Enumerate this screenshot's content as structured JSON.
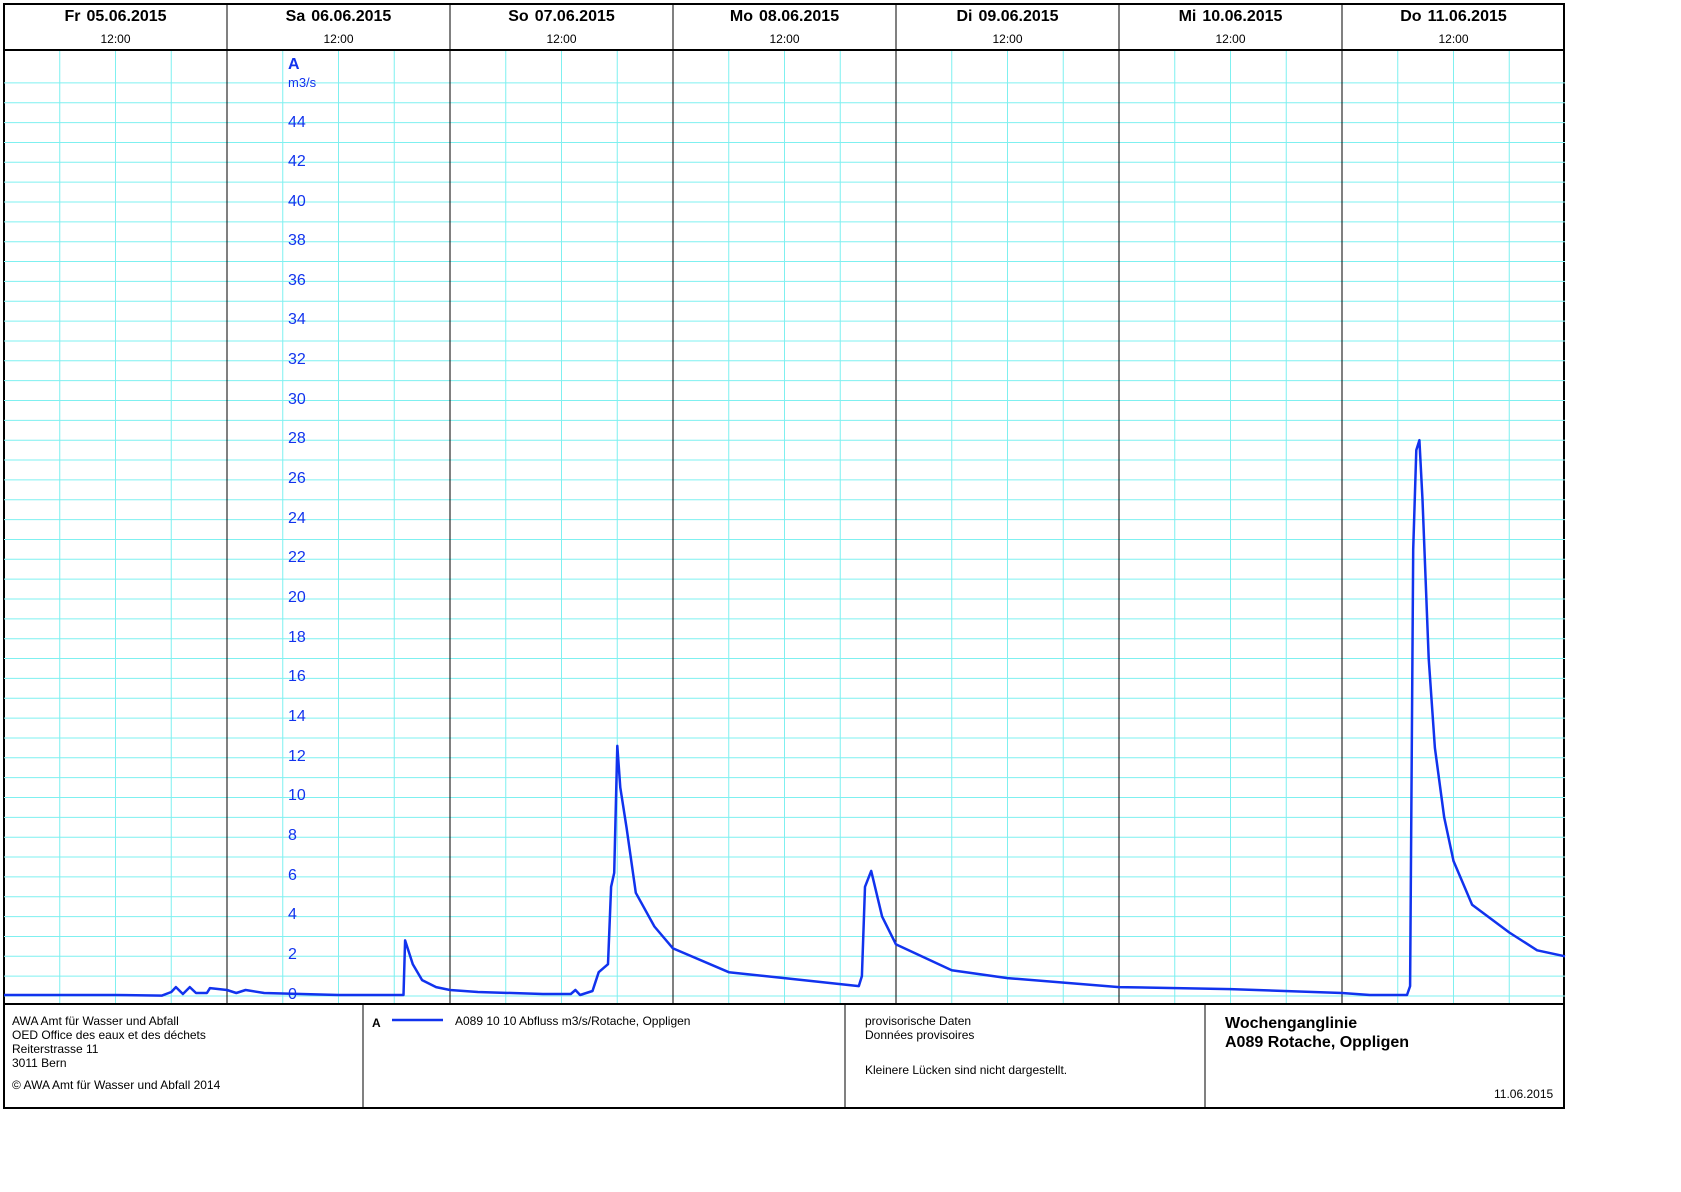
{
  "header": {
    "days": [
      {
        "day": "Fr",
        "date": "05.06.2015",
        "noon": "12:00"
      },
      {
        "day": "Sa",
        "date": "06.06.2015",
        "noon": "12:00"
      },
      {
        "day": "So",
        "date": "07.06.2015",
        "noon": "12:00"
      },
      {
        "day": "Mo",
        "date": "08.06.2015",
        "noon": "12:00"
      },
      {
        "day": "Di",
        "date": "09.06.2015",
        "noon": "12:00"
      },
      {
        "day": "Mi",
        "date": "10.06.2015",
        "noon": "12:00"
      },
      {
        "day": "Do",
        "date": "11.06.2015",
        "noon": "12:00"
      }
    ]
  },
  "chart_data": {
    "type": "line",
    "axis_label": "A",
    "unit": "m3/s",
    "x_start": "2015-06-05T00:00",
    "x_end": "2015-06-12T00:00",
    "ylim": [
      0,
      46
    ],
    "yticks": [
      0,
      2,
      4,
      6,
      8,
      10,
      12,
      14,
      16,
      18,
      20,
      22,
      24,
      26,
      28,
      30,
      32,
      34,
      36,
      38,
      40,
      42,
      44
    ],
    "grid": true,
    "line_color": "#1133ee",
    "series": [
      {
        "name": "A089 10 10  Abfluss m3/s/Rotache, Oppligen",
        "points": [
          [
            "2015-06-05T00:00",
            0.05
          ],
          [
            "2015-06-05T12:00",
            0.05
          ],
          [
            "2015-06-05T17:00",
            0.02
          ],
          [
            "2015-06-05T18:00",
            0.2
          ],
          [
            "2015-06-05T18:30",
            0.45
          ],
          [
            "2015-06-05T19:15",
            0.1
          ],
          [
            "2015-06-05T20:00",
            0.45
          ],
          [
            "2015-06-05T20:40",
            0.15
          ],
          [
            "2015-06-05T21:50",
            0.15
          ],
          [
            "2015-06-05T22:10",
            0.4
          ],
          [
            "2015-06-06T00:00",
            0.3
          ],
          [
            "2015-06-06T01:00",
            0.15
          ],
          [
            "2015-06-06T02:00",
            0.3
          ],
          [
            "2015-06-06T04:00",
            0.15
          ],
          [
            "2015-06-06T12:00",
            0.05
          ],
          [
            "2015-06-06T19:00",
            0.05
          ],
          [
            "2015-06-06T19:10",
            2.8
          ],
          [
            "2015-06-06T20:00",
            1.6
          ],
          [
            "2015-06-06T21:00",
            0.8
          ],
          [
            "2015-06-06T22:30",
            0.45
          ],
          [
            "2015-06-07T00:00",
            0.3
          ],
          [
            "2015-06-07T03:00",
            0.2
          ],
          [
            "2015-06-07T10:00",
            0.1
          ],
          [
            "2015-06-07T13:00",
            0.1
          ],
          [
            "2015-06-07T13:30",
            0.3
          ],
          [
            "2015-06-07T14:00",
            0.05
          ],
          [
            "2015-06-07T15:20",
            0.25
          ],
          [
            "2015-06-07T16:00",
            1.2
          ],
          [
            "2015-06-07T17:00",
            1.6
          ],
          [
            "2015-06-07T17:20",
            5.5
          ],
          [
            "2015-06-07T17:40",
            6.2
          ],
          [
            "2015-06-07T18:00",
            12.6
          ],
          [
            "2015-06-07T18:20",
            10.5
          ],
          [
            "2015-06-07T19:00",
            8.5
          ],
          [
            "2015-06-07T20:00",
            5.2
          ],
          [
            "2015-06-07T22:00",
            3.5
          ],
          [
            "2015-06-08T00:00",
            2.4
          ],
          [
            "2015-06-08T06:00",
            1.2
          ],
          [
            "2015-06-08T12:00",
            0.9
          ],
          [
            "2015-06-08T18:00",
            0.6
          ],
          [
            "2015-06-08T20:00",
            0.5
          ],
          [
            "2015-06-08T20:20",
            1.0
          ],
          [
            "2015-06-08T20:40",
            5.5
          ],
          [
            "2015-06-08T21:20",
            6.3
          ],
          [
            "2015-06-08T22:30",
            4.0
          ],
          [
            "2015-06-09T00:00",
            2.6
          ],
          [
            "2015-06-09T06:00",
            1.3
          ],
          [
            "2015-06-09T12:00",
            0.9
          ],
          [
            "2015-06-10T00:00",
            0.45
          ],
          [
            "2015-06-10T12:00",
            0.35
          ],
          [
            "2015-06-11T00:00",
            0.15
          ],
          [
            "2015-06-11T03:00",
            0.05
          ],
          [
            "2015-06-11T07:00",
            0.05
          ],
          [
            "2015-06-11T07:20",
            0.5
          ],
          [
            "2015-06-11T07:40",
            22.5
          ],
          [
            "2015-06-11T08:00",
            27.5
          ],
          [
            "2015-06-11T08:20",
            28.0
          ],
          [
            "2015-06-11T08:40",
            25.0
          ],
          [
            "2015-06-11T09:20",
            17.0
          ],
          [
            "2015-06-11T10:00",
            12.5
          ],
          [
            "2015-06-11T11:00",
            9.0
          ],
          [
            "2015-06-11T12:00",
            6.8
          ],
          [
            "2015-06-11T14:00",
            4.6
          ],
          [
            "2015-06-11T18:00",
            3.2
          ],
          [
            "2015-06-11T21:00",
            2.3
          ],
          [
            "2015-06-12T00:00",
            2.0
          ]
        ]
      }
    ]
  },
  "footer": {
    "org": {
      "line1": "AWA Amt für Wasser und Abfall",
      "line2": "OED Office des eaux et des déchets",
      "line3": "Reiterstrasse 11",
      "line4": "3011 Bern",
      "copyright": "© AWA Amt für Wasser und Abfall 2014"
    },
    "legend": {
      "code": "A",
      "text": "A089 10 10  Abfluss m3/s/Rotache, Oppligen"
    },
    "notes": {
      "line1": "provisorische Daten",
      "line2": "Données provisoires",
      "line3": "Kleinere Lücken sind nicht dargestellt."
    },
    "title": {
      "line1": "Wochenganglinie",
      "line2": "A089 Rotache, Oppligen",
      "date": "11.06.2015"
    }
  }
}
